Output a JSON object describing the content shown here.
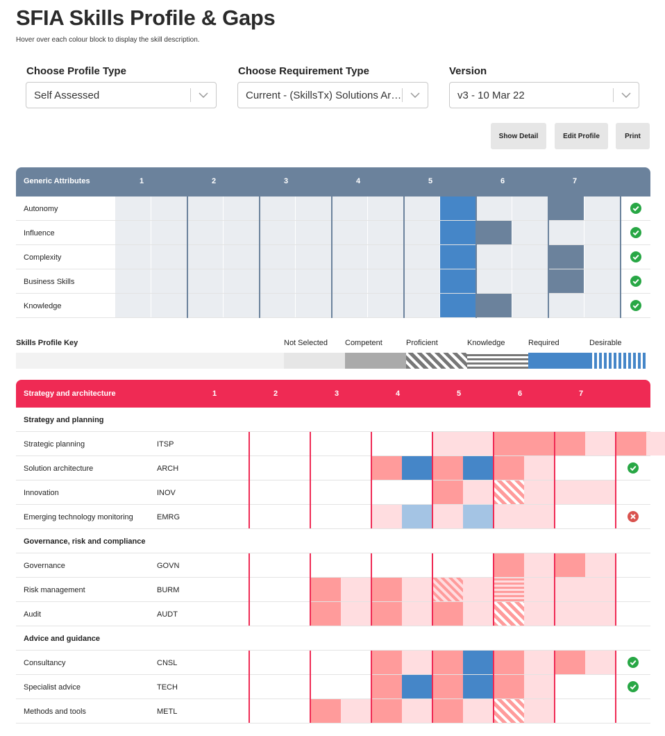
{
  "header": {
    "title": "SFIA Skills Profile & Gaps",
    "subtitle": "Hover over each colour block to display the skill description."
  },
  "filters": {
    "profile_type": {
      "label": "Choose Profile Type",
      "value": "Self Assessed"
    },
    "requirement_type": {
      "label": "Choose Requirement Type",
      "value": "Current - (SkillsTx) Solutions Architect"
    },
    "version": {
      "label": "Version",
      "value": "v3 - 10 Mar 22"
    }
  },
  "toolbar": {
    "show_detail": "Show Detail",
    "edit_profile": "Edit Profile",
    "print": "Print"
  },
  "colors": {
    "slate": "#6b829c",
    "crimson": "#ef2a54",
    "required": "#4586c8",
    "pink": "#ff9b9b",
    "pale_pink": "#ffdde0",
    "grey_cell": "#eaedf1",
    "ok": "#28a745",
    "fail": "#d9534f"
  },
  "levels": [
    "1",
    "2",
    "3",
    "4",
    "5",
    "6",
    "7"
  ],
  "generic": {
    "header": "Generic Attributes",
    "rows": [
      {
        "label": "Autonomy",
        "blue": [
          9
        ],
        "slate": [
          12
        ],
        "white": [
          10,
          11,
          13
        ],
        "status": "ok"
      },
      {
        "label": "Influence",
        "blue": [
          9
        ],
        "slate": [
          10
        ],
        "white": [
          11,
          12,
          13
        ],
        "status": "ok"
      },
      {
        "label": "Complexity",
        "blue": [
          9
        ],
        "slate": [
          12
        ],
        "white": [
          10,
          11,
          13
        ],
        "status": "ok"
      },
      {
        "label": "Business Skills",
        "blue": [
          9
        ],
        "slate": [
          12
        ],
        "white": [
          10,
          11,
          13
        ],
        "status": "ok"
      },
      {
        "label": "Knowledge",
        "blue": [
          9
        ],
        "slate": [
          10
        ],
        "white": [
          11,
          12,
          13
        ],
        "status": "ok"
      }
    ]
  },
  "key": {
    "title": "Skills Profile Key",
    "items": [
      {
        "label": "Not Selected",
        "style": "plain",
        "color": "#e6e6e6"
      },
      {
        "label": "Competent",
        "style": "plain",
        "color": "#aaaaaa"
      },
      {
        "label": "Proficient",
        "style": "diag",
        "color": "#777777"
      },
      {
        "label": "Knowledge",
        "style": "horiz",
        "color": "#777777"
      },
      {
        "label": "Required",
        "style": "plain",
        "color": "#4586c8"
      },
      {
        "label": "Desirable",
        "style": "vert",
        "color": "#4586c8"
      }
    ]
  },
  "skills": {
    "header": "Strategy and architecture",
    "groups": [
      {
        "name": "Strategy and planning",
        "rows": [
          {
            "label": "Strategic planning",
            "code": "ITSP",
            "cells": "....ppPPPpPp",
            "status": ""
          },
          {
            "label": "Solution architecture",
            "code": "ARCH",
            "cells": "..PBPBPp..",
            "status": "ok"
          },
          {
            "label": "Innovation",
            "code": "INOV",
            "cells": "....PpDppp",
            "status": ""
          },
          {
            "label": "Emerging technology monitoring",
            "code": "EMRG",
            "cells": "..pLpLpp..",
            "status": "fail"
          }
        ]
      },
      {
        "name": "Governance, risk and compliance",
        "rows": [
          {
            "label": "Governance",
            "code": "GOVN",
            "cells": "......PpPp",
            "status": ""
          },
          {
            "label": "Risk management",
            "code": "BURM",
            "cells": "PpPpdpHppp",
            "status": ""
          },
          {
            "label": "Audit",
            "code": "AUDT",
            "cells": "PpPpPpDppp",
            "status": ""
          }
        ]
      },
      {
        "name": "Advice and guidance",
        "rows": [
          {
            "label": "Consultancy",
            "code": "CNSL",
            "cells": "..PpPBPpPp",
            "status": "ok"
          },
          {
            "label": "Specialist advice",
            "code": "TECH",
            "cells": "..PBPBPp..",
            "status": "ok"
          },
          {
            "label": "Methods and tools",
            "code": "METL",
            "cells": "PpPpPpDp..",
            "status": ""
          }
        ]
      }
    ]
  }
}
